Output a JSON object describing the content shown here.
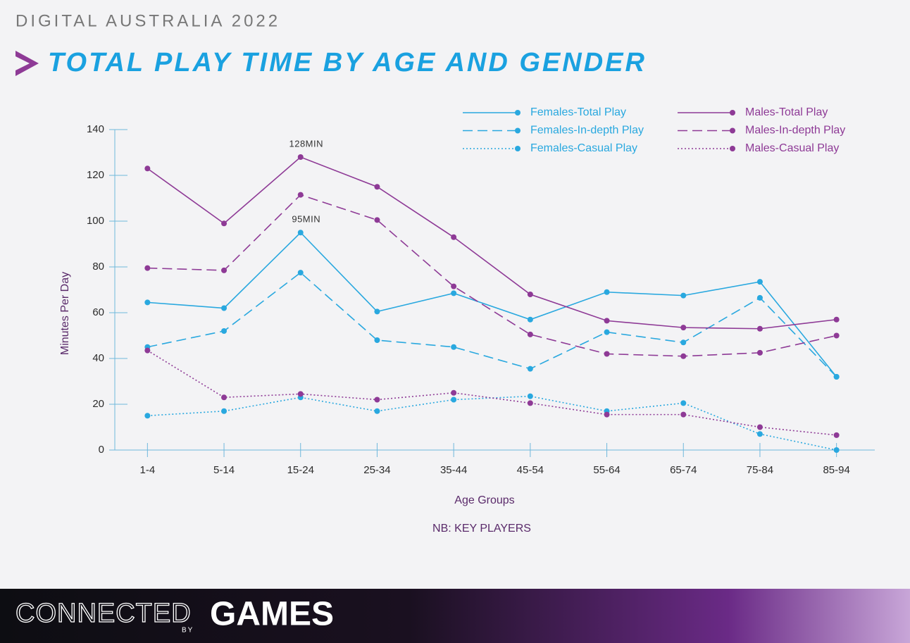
{
  "header": "DIGITAL AUSTRALIA 2022",
  "chart_data": {
    "type": "line",
    "title": "TOTAL PLAY TIME BY AGE AND GENDER",
    "y_label": "Minutes Per Day",
    "x_label": "Age Groups",
    "note": "NB: KEY PLAYERS",
    "annotations": [
      "128MIN",
      "95MIN"
    ],
    "categories": [
      "1-4",
      "5-14",
      "15-24",
      "25-34",
      "35-44",
      "45-54",
      "55-64",
      "65-74",
      "75-84",
      "85-94"
    ],
    "ylim": [
      0,
      140
    ],
    "yticks": [
      0,
      20,
      40,
      60,
      80,
      100,
      120,
      140
    ],
    "series": [
      {
        "name": "Females-Total Play",
        "color": "#29a8df",
        "dash": "solid",
        "values": [
          64.5,
          62,
          95,
          60.5,
          68.5,
          57,
          69,
          67.5,
          73.5,
          32
        ]
      },
      {
        "name": "Females-In-depth Play",
        "color": "#29a8df",
        "dash": "dashed",
        "values": [
          45,
          52,
          77.5,
          48,
          45,
          35.5,
          51.5,
          47,
          66.5,
          32
        ]
      },
      {
        "name": "Females-Casual Play",
        "color": "#29a8df",
        "dash": "dotted",
        "values": [
          15,
          17,
          23,
          17,
          22,
          23.5,
          17,
          20.5,
          7,
          0
        ]
      },
      {
        "name": "Males-Total Play",
        "color": "#8e3a96",
        "dash": "solid",
        "values": [
          123,
          99,
          128,
          115,
          93,
          68,
          56.5,
          53.5,
          53,
          57
        ]
      },
      {
        "name": "Males-In-depth Play",
        "color": "#8e3a96",
        "dash": "dashed",
        "values": [
          79.5,
          78.5,
          111.5,
          100.5,
          71.5,
          50.5,
          42,
          41,
          42.5,
          50
        ]
      },
      {
        "name": "Males-Casual Play",
        "color": "#8e3a96",
        "dash": "dotted",
        "values": [
          43.5,
          23,
          24.5,
          22,
          25,
          20.5,
          15.5,
          15.5,
          10,
          6.5
        ]
      }
    ]
  },
  "footer": {
    "brand": "CONNECTED",
    "by": "BY",
    "games": "GAMES"
  }
}
